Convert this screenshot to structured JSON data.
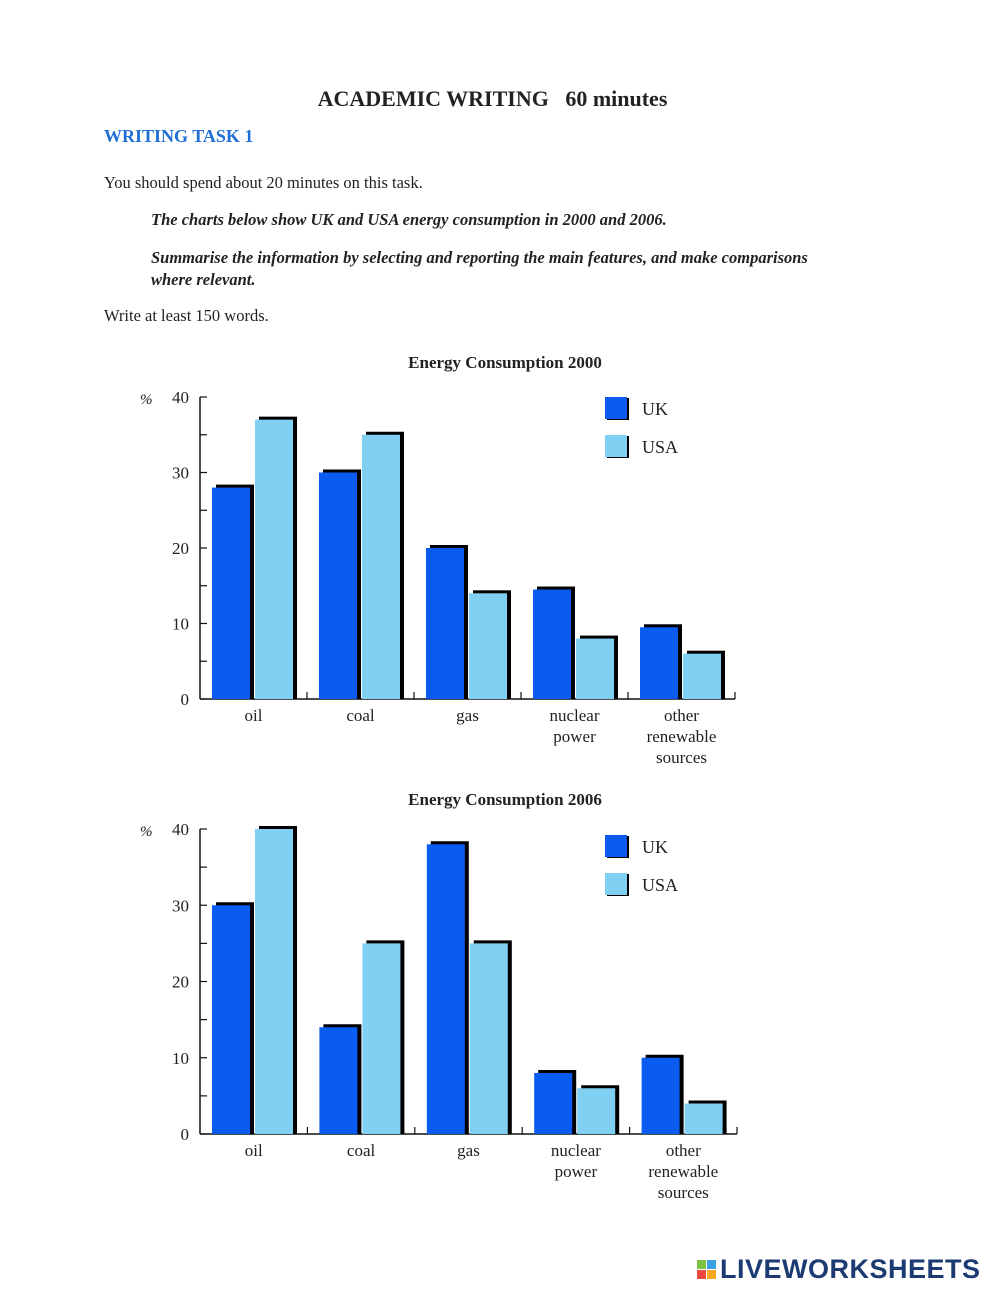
{
  "header": {
    "title": "ACADEMIC WRITING   60 minutes",
    "task": "WRITING TASK 1",
    "instruction": "You should spend about 20 minutes on this task.",
    "prompt1": "The charts below show UK and USA energy consumption in 2000 and 2006.",
    "prompt2": "Summarise the information by selecting and reporting the main features, and make comparisons where relevant.",
    "word_count": "Write at least 150 words."
  },
  "chart_data": [
    {
      "type": "bar",
      "title": "Energy Consumption 2000",
      "ylabel": "%",
      "ylim": [
        0,
        40
      ],
      "yticks": [
        "0",
        "10",
        "20",
        "30",
        "40"
      ],
      "categories": [
        "oil",
        "coal",
        "gas",
        "nuclear\npower",
        "other\nrenewable\nsources"
      ],
      "series": [
        {
          "name": "UK",
          "color": "#0a5cf0",
          "values": [
            28,
            30,
            20,
            14.5,
            9.5
          ]
        },
        {
          "name": "USA",
          "color": "#7fd0f2",
          "values": [
            37,
            35,
            14,
            8,
            6
          ]
        }
      ],
      "legend": "top-right",
      "grid": false
    },
    {
      "type": "bar",
      "title": "Energy Consumption 2006",
      "ylabel": "%",
      "ylim": [
        0,
        40
      ],
      "yticks": [
        "0",
        "10",
        "20",
        "30",
        "40"
      ],
      "categories": [
        "oil",
        "coal",
        "gas",
        "nuclear\npower",
        "other\nrenewable\nsources"
      ],
      "series": [
        {
          "name": "UK",
          "color": "#0a5cf0",
          "values": [
            30,
            14,
            38,
            8,
            10
          ]
        },
        {
          "name": "USA",
          "color": "#7fd0f2",
          "values": [
            40,
            25,
            25,
            6,
            4
          ]
        }
      ],
      "legend": "top-right",
      "grid": false
    }
  ],
  "footer": {
    "logo": "LIVEWORKSHEETS"
  }
}
